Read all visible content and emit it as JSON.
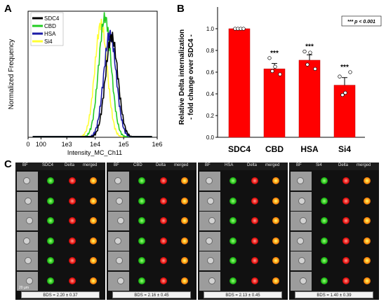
{
  "panels": {
    "a": "A",
    "b": "B",
    "c": "C"
  },
  "chart_data": [
    {
      "type": "line",
      "panel": "A",
      "xlabel": "Intensity_MC_Ch11",
      "ylabel": "Normalized Frequency",
      "xscale": "log",
      "xlim": [
        0,
        1000000
      ],
      "x_tick_labels": [
        "0",
        "100",
        "1e3",
        "1e4",
        "1e5",
        "1e6"
      ],
      "legend_placement": "top-left",
      "series": [
        {
          "name": "SDC4",
          "color": "#000000",
          "mode": 38000,
          "peak": 0.8
        },
        {
          "name": "CBD",
          "color": "#22cc22",
          "mode": 22000,
          "peak": 0.95
        },
        {
          "name": "HSA",
          "color": "#1a1aa6",
          "mode": 33000,
          "peak": 0.82
        },
        {
          "name": "Si4",
          "color": "#ffff33",
          "mode": 16000,
          "peak": 0.9
        }
      ]
    },
    {
      "type": "bar",
      "panel": "B",
      "categories": [
        "SDC4",
        "CBD",
        "HSA",
        "Si4"
      ],
      "values": [
        1.0,
        0.63,
        0.71,
        0.48
      ],
      "errors": [
        0.0,
        0.05,
        0.05,
        0.07
      ],
      "points": [
        [
          1.0,
          1.0,
          1.0,
          1.0
        ],
        [
          0.73,
          0.65,
          0.61,
          0.58
        ],
        [
          0.79,
          0.78,
          0.67,
          0.63
        ],
        [
          0.56,
          0.41,
          0.39,
          0.6
        ]
      ],
      "significance": [
        "",
        "***",
        "***",
        "***"
      ],
      "ylabel_line1": "Relative Delta internalization",
      "ylabel_line2": "- fold change over SDC4 -",
      "ylim": [
        0,
        1.2
      ],
      "y_ticks": [
        "0.0",
        "0.2",
        "0.4",
        "0.6",
        "0.8",
        "1.0"
      ],
      "bar_color": "#ff0000",
      "annotation": "*** p < 0.001"
    }
  ],
  "cells": {
    "headers": [
      "BF",
      "Delta",
      "merged"
    ],
    "groups": [
      {
        "label": "SDC4",
        "bds": "BDS = 2.20 ± 0.37"
      },
      {
        "label": "CBD",
        "bds": "BDS = 2.16 ± 0.45"
      },
      {
        "label": "HSA",
        "bds": "BDS = 2.13 ± 0.45"
      },
      {
        "label": "Si4",
        "bds": "BDS = 1.40 ± 0.39"
      }
    ],
    "scale_bar": "20 µm"
  }
}
